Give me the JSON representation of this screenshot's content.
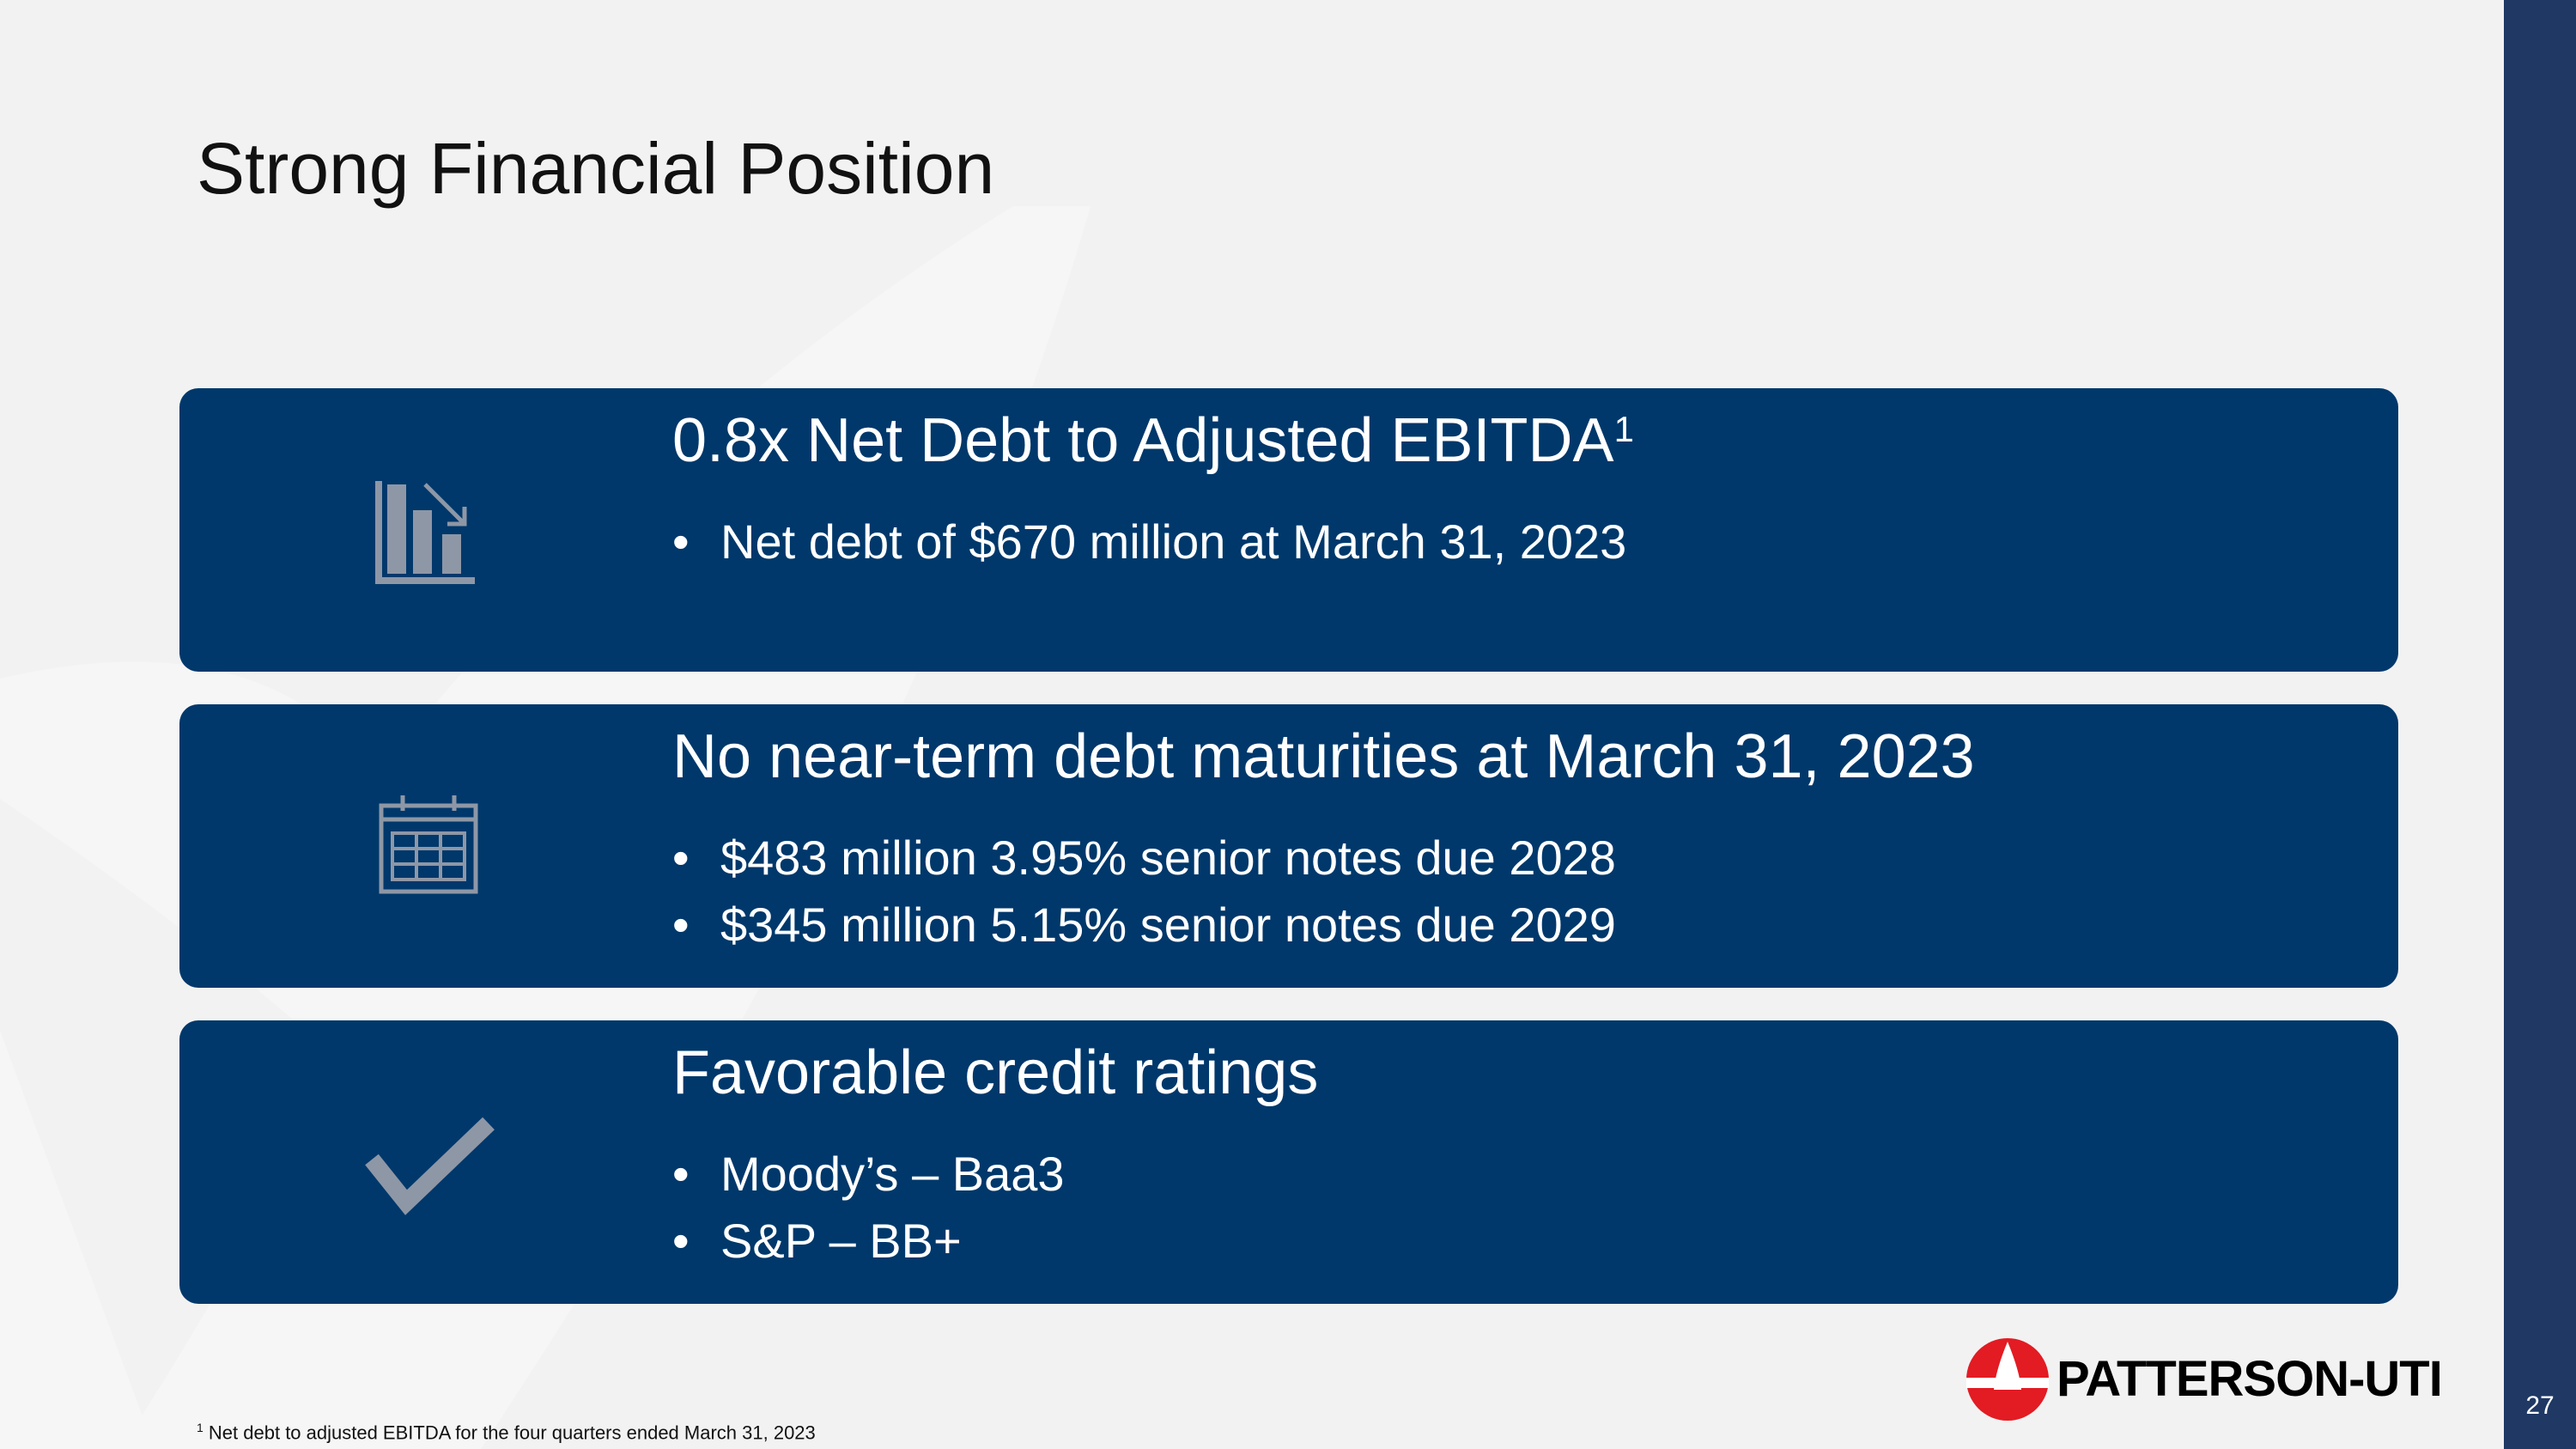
{
  "slide": {
    "title": "Strong Financial Position",
    "page_number": "27"
  },
  "colors": {
    "background": "#f2f2f2",
    "card": "#00386b",
    "right_bar": "#1f3864",
    "icon": "#8e97a6",
    "logo_red": "#e31b23"
  },
  "cards": [
    {
      "icon": "chart-decline-icon",
      "title": "0.8x Net Debt to Adjusted EBITDA",
      "title_sup": "1",
      "bullets": [
        "Net debt of $670 million at March 31, 2023"
      ]
    },
    {
      "icon": "calendar-icon",
      "title": "No near-term debt maturities at March 31, 2023",
      "bullets": [
        "$483 million 3.95% senior notes due 2028",
        "$345 million 5.15% senior notes due 2029"
      ]
    },
    {
      "icon": "checkmark-icon",
      "title": "Favorable credit ratings",
      "bullets": [
        "Moody’s – Baa3",
        "S&P – BB+"
      ]
    }
  ],
  "footnote": {
    "marker": "1",
    "text": " Net debt to adjusted EBITDA for the four quarters ended March 31, 2023"
  },
  "logo": {
    "text": "PATTERSON-UTI",
    "icon": "patterson-uti-logo-icon"
  }
}
